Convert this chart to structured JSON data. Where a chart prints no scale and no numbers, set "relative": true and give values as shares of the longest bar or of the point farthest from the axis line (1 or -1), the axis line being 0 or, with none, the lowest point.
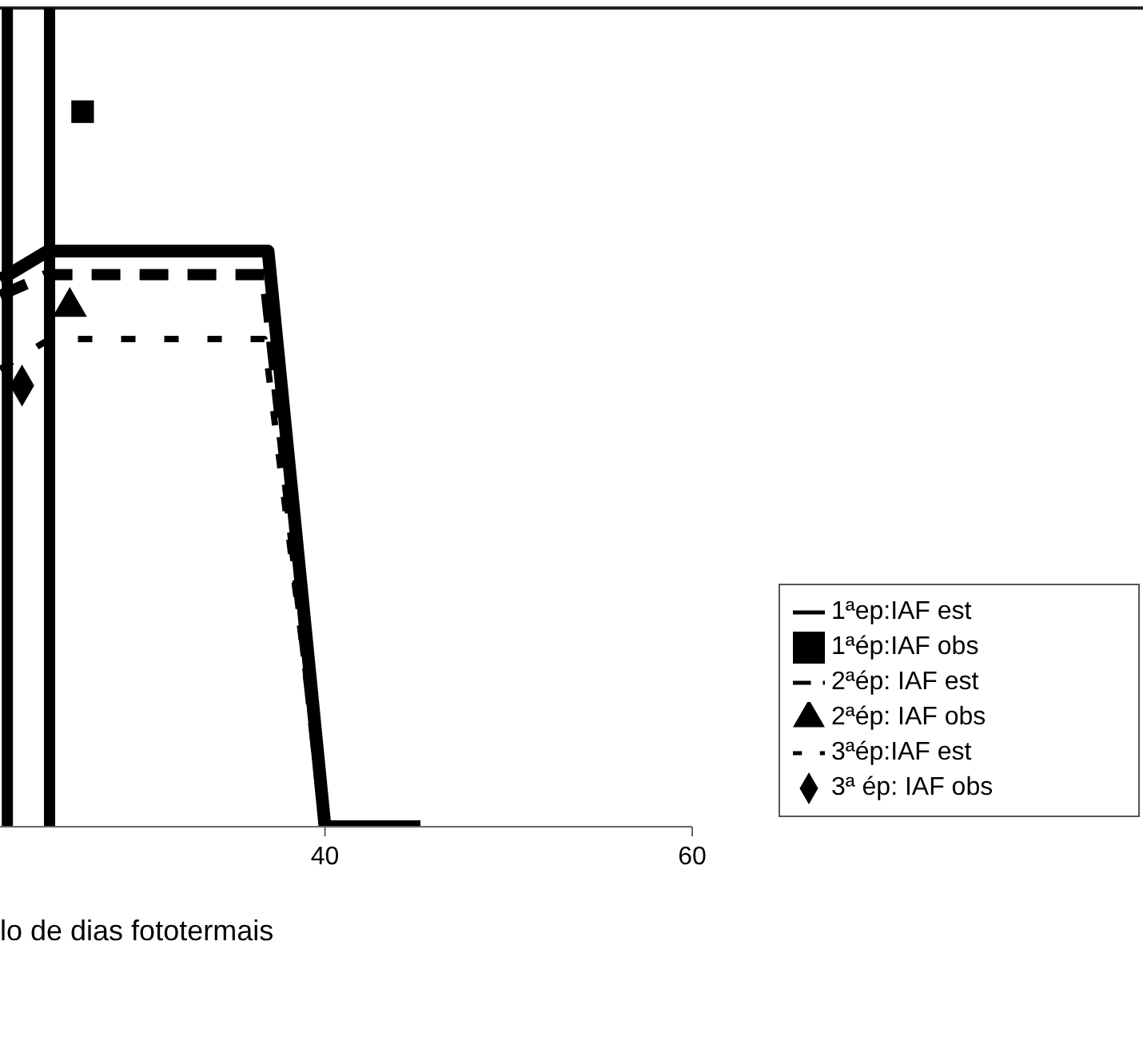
{
  "chart_data": {
    "type": "line",
    "xlabel": "lo de dias fototermais",
    "relative": true,
    "xlim": [
      22.3,
      60
    ],
    "xticks": [
      40,
      60
    ],
    "legend": "right",
    "ref_lines": [
      {
        "axis": "x",
        "value": 22.7,
        "color": "#000000"
      },
      {
        "axis": "x",
        "value": 25.0,
        "color": "#000000"
      }
    ],
    "series": [
      {
        "name": "1ªep:IAF est",
        "color": "#000000",
        "line_style": "solid",
        "marker": "none",
        "x": [
          22.3,
          24.9,
          36.9,
          40.0,
          45.2
        ],
        "values": [
          0.765,
          0.805,
          0.805,
          0,
          0
        ]
      },
      {
        "name": "1ªép:IAF obs",
        "type": "scatter",
        "color": "#000000",
        "marker": "square",
        "x": [
          26.8
        ],
        "values": [
          1.0
        ]
      },
      {
        "name": "2ªép: IAF est",
        "color": "#000000",
        "line_style": "dashed",
        "marker": "none",
        "x": [
          22.3,
          24.9,
          36.7,
          40.0
        ],
        "values": [
          0.743,
          0.772,
          0.772,
          0
        ]
      },
      {
        "name": "2ªép: IAF obs",
        "type": "scatter",
        "color": "#000000",
        "marker": "triangle",
        "x": [
          26.1
        ],
        "values": [
          0.727
        ]
      },
      {
        "name": "3ªép:IAF est",
        "color": "#000000",
        "line_style": "dotted",
        "marker": "none",
        "x": [
          22.3,
          25.0,
          36.7,
          40.0
        ],
        "values": [
          0.64,
          0.682,
          0.682,
          0
        ]
      },
      {
        "name": "3ª ép: IAF obs",
        "type": "scatter",
        "color": "#000000",
        "marker": "diamond",
        "x": [
          23.5
        ],
        "values": [
          0.617
        ]
      }
    ]
  }
}
